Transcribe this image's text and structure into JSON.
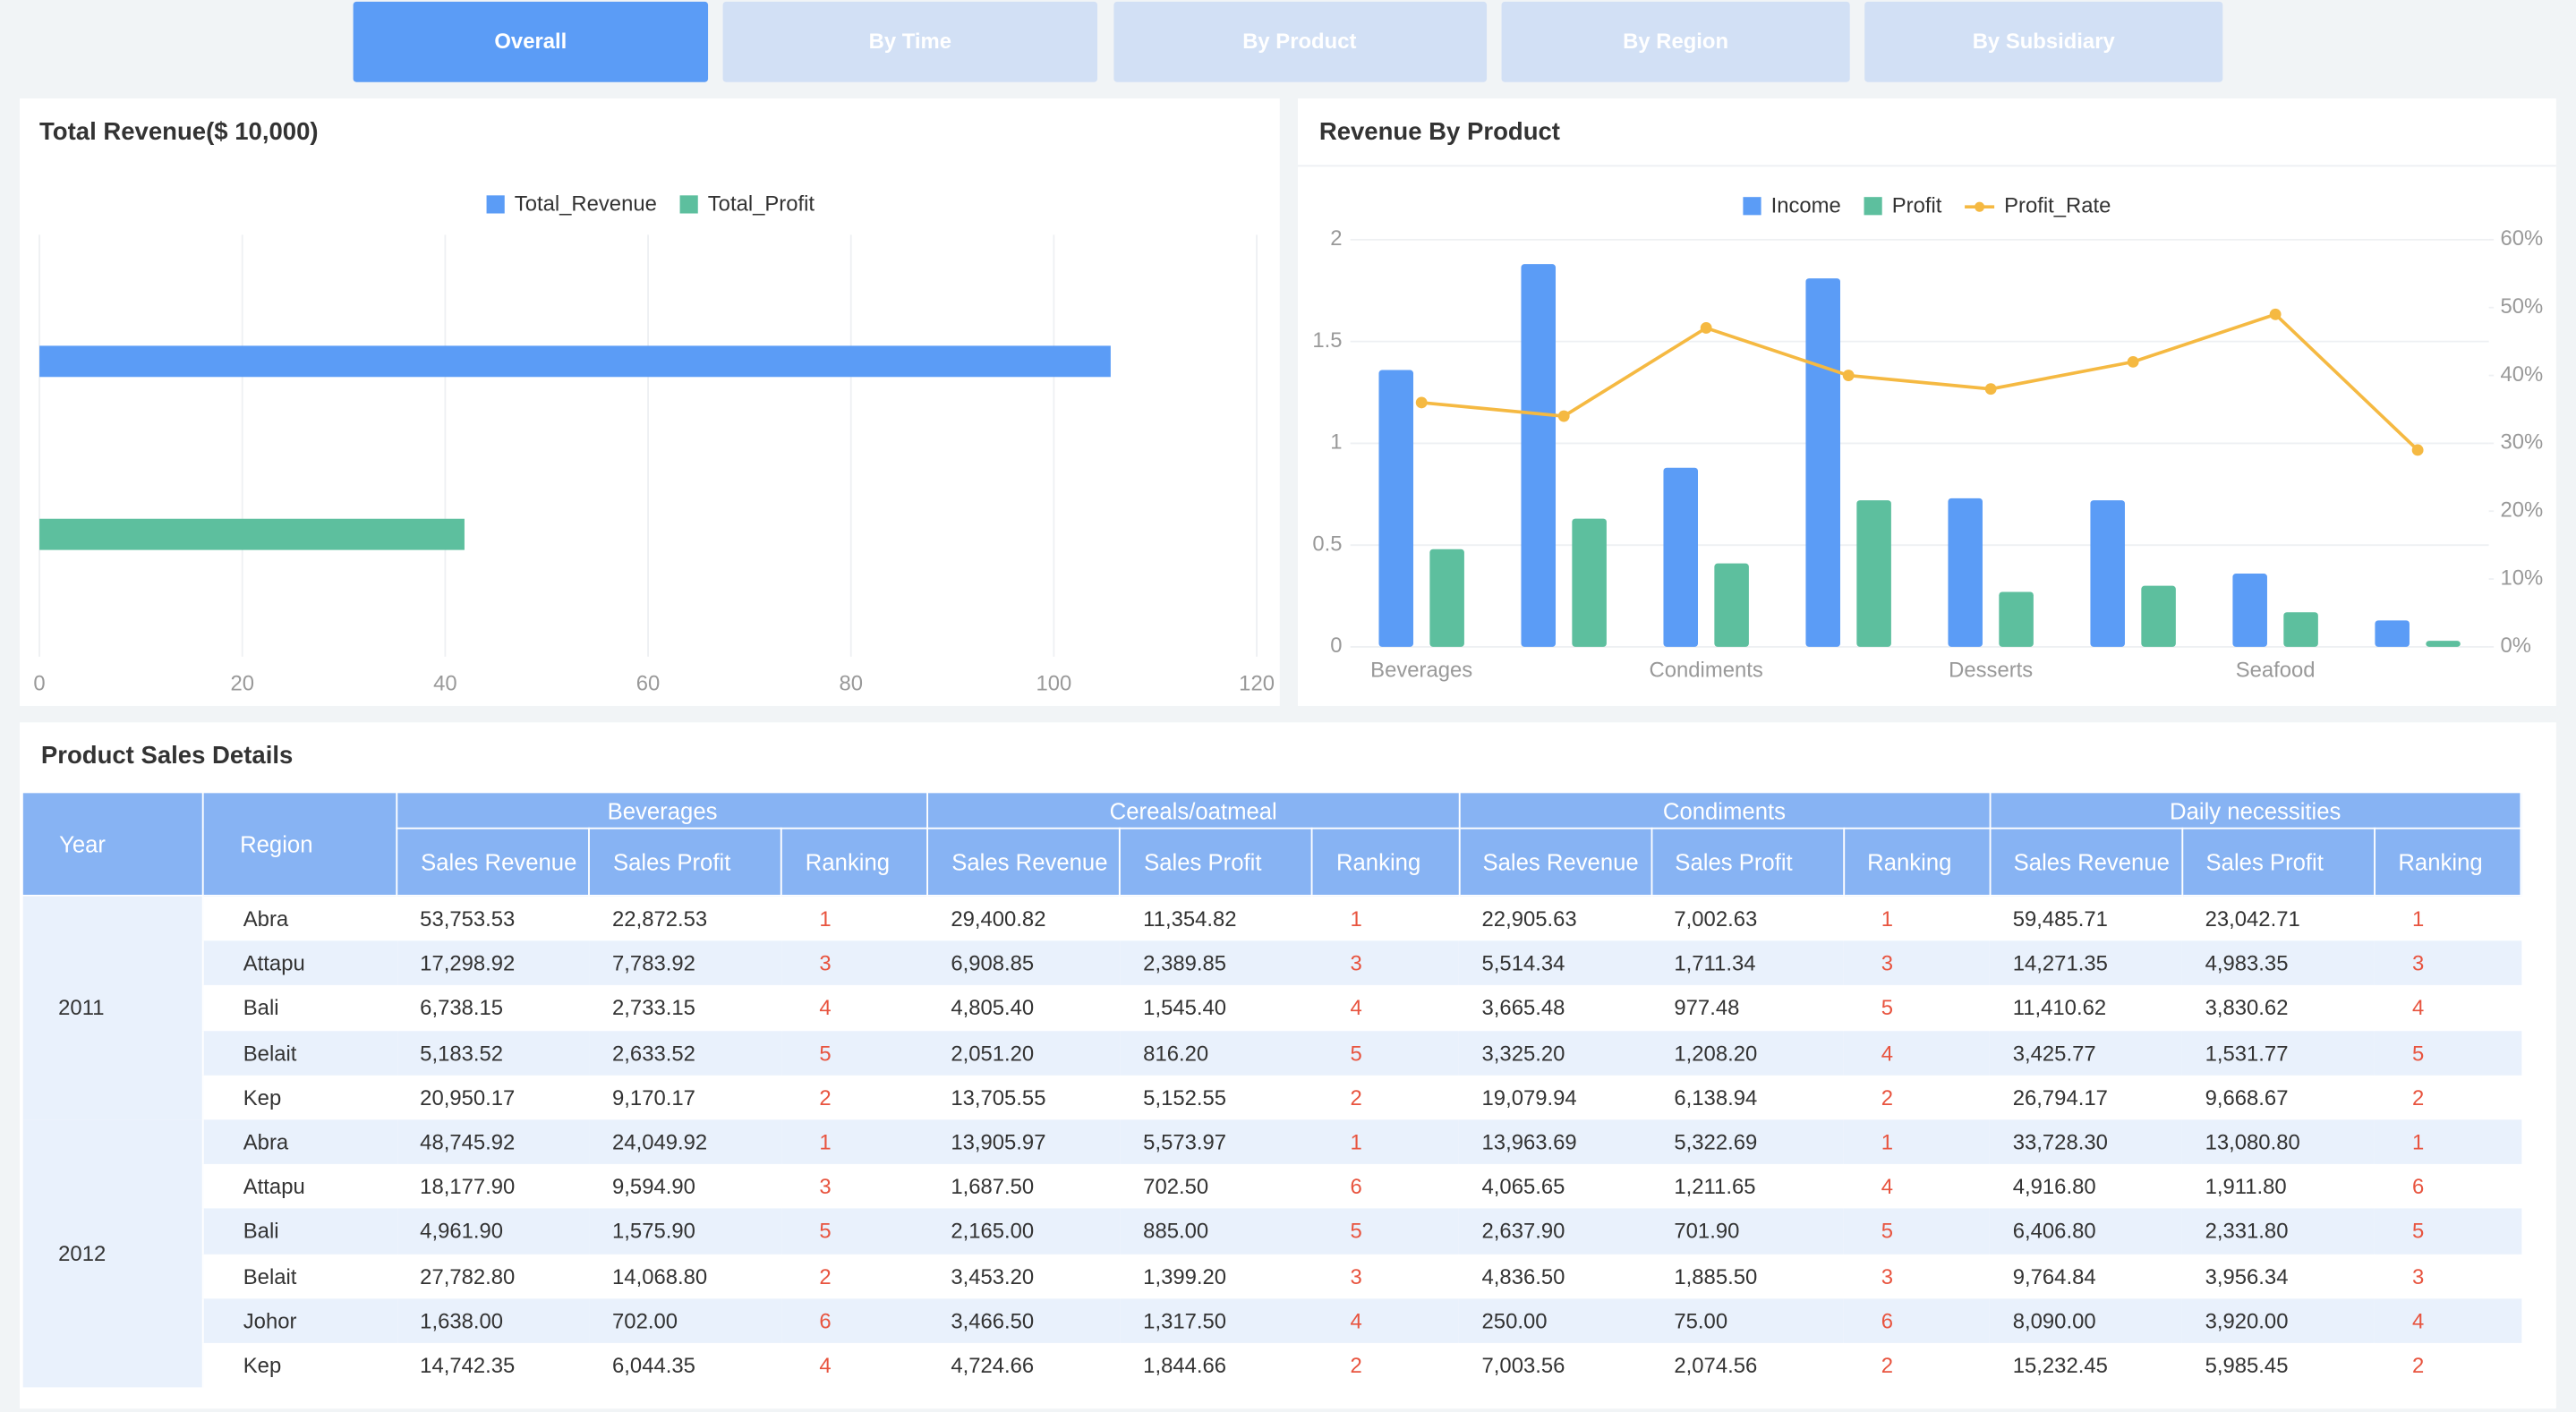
{
  "tabs": [
    "Overall",
    "By Time",
    "By Product",
    "By Region",
    "By Subsidiary"
  ],
  "chart_data": [
    {
      "type": "bar",
      "orientation": "horizontal",
      "title": "Total Revenue($ 10,000)",
      "categories": [
        null
      ],
      "series": [
        {
          "name": "Total_Revenue",
          "color": "#5b9cf6",
          "values": [
            105.6
          ]
        },
        {
          "name": "Total_Profit",
          "color": "#5dbf9e",
          "values": [
            41.9
          ]
        }
      ],
      "xlim": [
        0,
        120
      ],
      "xticks": [
        0,
        20,
        40,
        60,
        80,
        100,
        120
      ],
      "grid": true
    },
    {
      "type": "combo",
      "title": "Revenue By Product",
      "categories": [
        "Beverages",
        null,
        "Condiments",
        null,
        "Desserts",
        null,
        "Seafood",
        null
      ],
      "series": [
        {
          "name": "Income",
          "type": "bar",
          "color": "#5b9cf6",
          "values": [
            1.36,
            1.88,
            0.88,
            1.81,
            0.73,
            0.72,
            0.36,
            0.13
          ]
        },
        {
          "name": "Profit",
          "type": "bar",
          "color": "#5dbf9e",
          "values": [
            0.48,
            0.63,
            0.41,
            0.72,
            0.27,
            0.3,
            0.17,
            0.03
          ]
        },
        {
          "name": "Profit_Rate",
          "type": "line",
          "axis": "y2",
          "color": "#f5b942",
          "values": [
            36,
            34,
            47,
            40,
            38,
            42,
            49,
            29
          ]
        }
      ],
      "ylim": [
        0,
        2
      ],
      "yticks": [
        0,
        0.5,
        1,
        1.5,
        2
      ],
      "y2lim": [
        0,
        60
      ],
      "y2ticks": [
        {
          "value": 0,
          "label": "0%"
        },
        {
          "value": 10,
          "label": "10%"
        },
        {
          "value": 20,
          "label": "20%"
        },
        {
          "value": 30,
          "label": "30%"
        },
        {
          "value": 40,
          "label": "40%"
        },
        {
          "value": 50,
          "label": "50%"
        },
        {
          "value": 60,
          "label": "60%"
        }
      ],
      "grid": true
    }
  ],
  "table": {
    "title": "Product Sales Details",
    "headers": {
      "year": "Year",
      "region": "Region",
      "groups": [
        "Beverages",
        "Cereals/oatmeal",
        "Condiments",
        "Daily necessities"
      ],
      "columns": [
        "Sales Revenue",
        "Sales Profit",
        "Ranking"
      ]
    },
    "years": [
      {
        "year": "2011",
        "rows": [
          {
            "region": "Abra",
            "cells": [
              "53,753.53",
              "22,872.53",
              "1",
              "29,400.82",
              "11,354.82",
              "1",
              "22,905.63",
              "7,002.63",
              "1",
              "59,485.71",
              "23,042.71",
              "1"
            ]
          },
          {
            "region": "Attapu",
            "cells": [
              "17,298.92",
              "7,783.92",
              "3",
              "6,908.85",
              "2,389.85",
              "3",
              "5,514.34",
              "1,711.34",
              "3",
              "14,271.35",
              "4,983.35",
              "3"
            ]
          },
          {
            "region": "Bali",
            "cells": [
              "6,738.15",
              "2,733.15",
              "4",
              "4,805.40",
              "1,545.40",
              "4",
              "3,665.48",
              "977.48",
              "5",
              "11,410.62",
              "3,830.62",
              "4"
            ]
          },
          {
            "region": "Belait",
            "cells": [
              "5,183.52",
              "2,633.52",
              "5",
              "2,051.20",
              "816.20",
              "5",
              "3,325.20",
              "1,208.20",
              "4",
              "3,425.77",
              "1,531.77",
              "5"
            ]
          },
          {
            "region": "Kep",
            "cells": [
              "20,950.17",
              "9,170.17",
              "2",
              "13,705.55",
              "5,152.55",
              "2",
              "19,079.94",
              "6,138.94",
              "2",
              "26,794.17",
              "9,668.67",
              "2"
            ]
          }
        ]
      },
      {
        "year": "2012",
        "rows": [
          {
            "region": "Abra",
            "cells": [
              "48,745.92",
              "24,049.92",
              "1",
              "13,905.97",
              "5,573.97",
              "1",
              "13,963.69",
              "5,322.69",
              "1",
              "33,728.30",
              "13,080.80",
              "1"
            ]
          },
          {
            "region": "Attapu",
            "cells": [
              "18,177.90",
              "9,594.90",
              "3",
              "1,687.50",
              "702.50",
              "6",
              "4,065.65",
              "1,211.65",
              "4",
              "4,916.80",
              "1,911.80",
              "6"
            ]
          },
          {
            "region": "Bali",
            "cells": [
              "4,961.90",
              "1,575.90",
              "5",
              "2,165.00",
              "885.00",
              "5",
              "2,637.90",
              "701.90",
              "5",
              "6,406.80",
              "2,331.80",
              "5"
            ]
          },
          {
            "region": "Belait",
            "cells": [
              "27,782.80",
              "14,068.80",
              "2",
              "3,453.20",
              "1,399.20",
              "3",
              "4,836.50",
              "1,885.50",
              "3",
              "9,764.84",
              "3,956.34",
              "3"
            ]
          },
          {
            "region": "Johor",
            "cells": [
              "1,638.00",
              "702.00",
              "6",
              "3,466.50",
              "1,317.50",
              "4",
              "250.00",
              "75.00",
              "6",
              "8,090.00",
              "3,920.00",
              "4"
            ]
          },
          {
            "region": "Kep",
            "cells": [
              "14,742.35",
              "6,044.35",
              "4",
              "4,724.66",
              "1,844.66",
              "2",
              "7,003.56",
              "2,074.56",
              "2",
              "15,232.45",
              "5,985.45",
              "2"
            ]
          }
        ]
      }
    ]
  }
}
